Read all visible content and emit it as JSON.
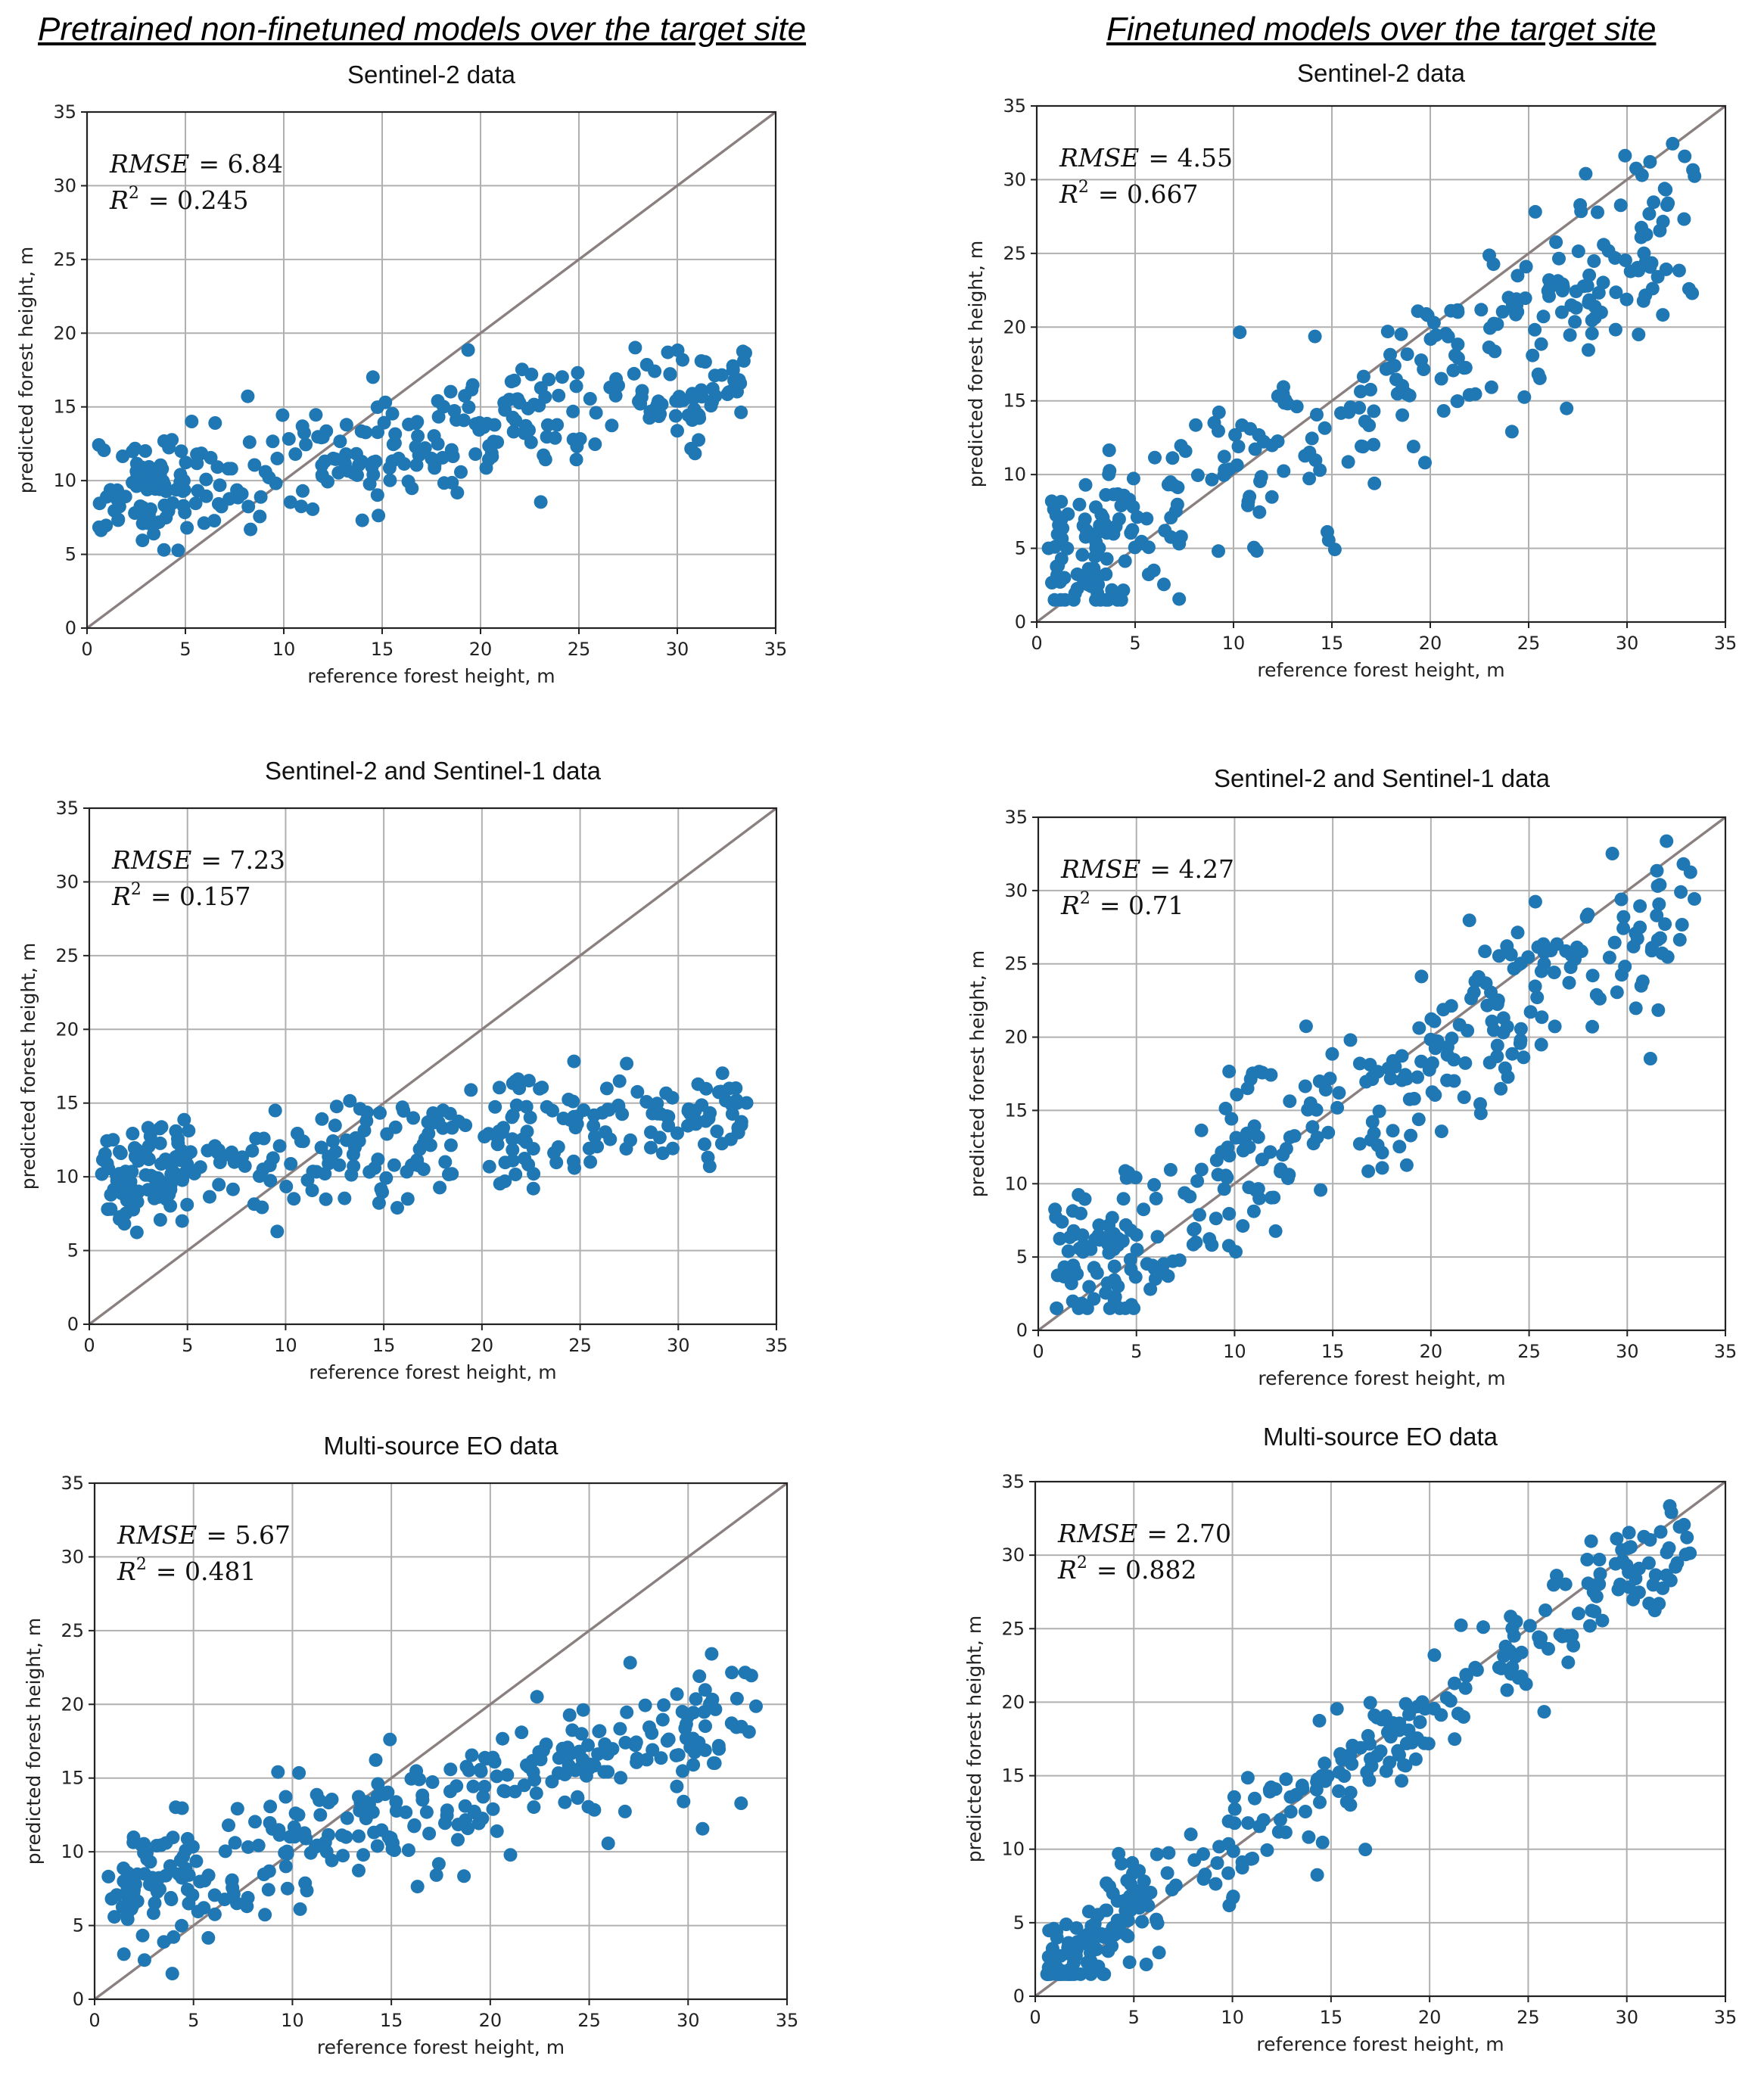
{
  "headings": {
    "left": "Pretrained non-finetuned models over the target site",
    "right": "Finetuned models over the target site"
  },
  "colors": {
    "points": "#1f77b4",
    "identity_line": "#8a8080",
    "grid": "#b0b0b0"
  },
  "chart_data": [
    {
      "type": "scatter",
      "column": "left",
      "title": "Sentinel-2 data",
      "xlabel": "reference forest height, m",
      "ylabel": "predicted forest height, m",
      "xlim": [
        0,
        35
      ],
      "ylim": [
        0,
        35
      ],
      "ticks": [
        0,
        5,
        10,
        15,
        20,
        25,
        30,
        35
      ],
      "grid": true,
      "rmse_label": "RMSE",
      "rmse_value": "= 6.84",
      "r2_label": "R",
      "r2_sup": "2",
      "r2_value": "= 0.245",
      "identity_line": [
        0,
        35
      ],
      "trend": {
        "slope": 0.25,
        "intercept": 8.5,
        "noise": 1.9,
        "seed": 11,
        "n": 330
      }
    },
    {
      "type": "scatter",
      "column": "right",
      "title": "Sentinel-2 data",
      "xlabel": "reference forest height, m",
      "ylabel": "predicted forest height, m",
      "xlim": [
        0,
        35
      ],
      "ylim": [
        0,
        35
      ],
      "ticks": [
        0,
        5,
        10,
        15,
        20,
        25,
        30,
        35
      ],
      "grid": true,
      "rmse_label": "RMSE",
      "rmse_value": "= 4.55",
      "r2_label": "R",
      "r2_sup": "2",
      "r2_value": "= 0.667",
      "identity_line": [
        0,
        35
      ],
      "trend": {
        "slope": 0.7,
        "intercept": 3.2,
        "noise": 3.0,
        "seed": 23,
        "n": 330
      }
    },
    {
      "type": "scatter",
      "column": "left",
      "title": "Sentinel-2 and Sentinel-1 data",
      "xlabel": "reference forest height, m",
      "ylabel": "predicted forest height, m",
      "xlim": [
        0,
        35
      ],
      "ylim": [
        0,
        35
      ],
      "ticks": [
        0,
        5,
        10,
        15,
        20,
        25,
        30,
        35
      ],
      "grid": true,
      "rmse_label": "RMSE",
      "rmse_value": "= 7.23",
      "r2_label": "R",
      "r2_sup": "2",
      "r2_value": "= 0.157",
      "identity_line": [
        0,
        35
      ],
      "trend": {
        "slope": 0.14,
        "intercept": 10.0,
        "noise": 1.8,
        "seed": 37,
        "n": 330
      }
    },
    {
      "type": "scatter",
      "column": "right",
      "title": "Sentinel-2 and Sentinel-1 data",
      "xlabel": "reference forest height, m",
      "ylabel": "predicted forest height, m",
      "xlim": [
        0,
        35
      ],
      "ylim": [
        0,
        35
      ],
      "ticks": [
        0,
        5,
        10,
        15,
        20,
        25,
        30,
        35
      ],
      "grid": true,
      "rmse_label": "RMSE",
      "rmse_value": "= 4.27",
      "r2_label": "R",
      "r2_sup": "2",
      "r2_value": "= 0.71",
      "identity_line": [
        0,
        35
      ],
      "trend": {
        "slope": 0.78,
        "intercept": 2.8,
        "noise": 3.0,
        "seed": 41,
        "n": 330
      }
    },
    {
      "type": "scatter",
      "column": "left",
      "title": "Multi-source EO data",
      "xlabel": "reference forest height, m",
      "ylabel": "predicted forest height, m",
      "xlim": [
        0,
        35
      ],
      "ylim": [
        0,
        35
      ],
      "ticks": [
        0,
        5,
        10,
        15,
        20,
        25,
        30,
        35
      ],
      "grid": true,
      "rmse_label": "RMSE",
      "rmse_value": "= 5.67",
      "r2_label": "R",
      "r2_sup": "2",
      "r2_value": "= 0.481",
      "identity_line": [
        0,
        35
      ],
      "trend": {
        "slope": 0.38,
        "intercept": 6.5,
        "noise": 2.2,
        "seed": 53,
        "n": 330
      }
    },
    {
      "type": "scatter",
      "column": "right",
      "title": "Multi-source EO data",
      "xlabel": "reference forest height, m",
      "ylabel": "predicted forest height, m",
      "xlim": [
        0,
        35
      ],
      "ylim": [
        0,
        35
      ],
      "ticks": [
        0,
        5,
        10,
        15,
        20,
        25,
        30,
        35
      ],
      "grid": true,
      "rmse_label": "RMSE",
      "rmse_value": "= 2.70",
      "r2_label": "R",
      "r2_sup": "2",
      "r2_value": "= 0.882",
      "identity_line": [
        0,
        35
      ],
      "trend": {
        "slope": 0.9,
        "intercept": 1.0,
        "noise": 1.8,
        "seed": 67,
        "n": 330
      }
    }
  ]
}
